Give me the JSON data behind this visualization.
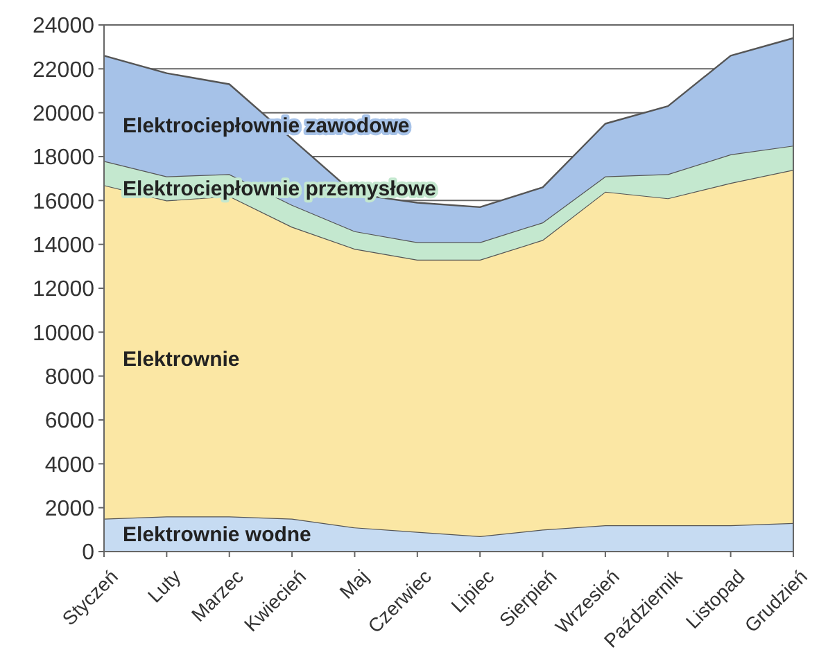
{
  "chart_data": {
    "type": "area",
    "stacked": true,
    "categories": [
      "Styczeń",
      "Luty",
      "Marzec",
      "Kwiecień",
      "Maj",
      "Czerwiec",
      "Lipiec",
      "Sierpień",
      "Wrzesień",
      "Październik",
      "Listopad",
      "Grudzień"
    ],
    "series": [
      {
        "name": "Elektrownie wodne",
        "color": "#c6dbf2",
        "values": [
          1500,
          1600,
          1600,
          1500,
          1100,
          900,
          700,
          1000,
          1200,
          1200,
          1200,
          1300
        ]
      },
      {
        "name": "Elektrownie",
        "color": "#fbe7a4",
        "values": [
          15200,
          14400,
          14600,
          13300,
          12700,
          12400,
          12600,
          13200,
          15200,
          14900,
          15600,
          16100
        ]
      },
      {
        "name": "Elektrociepłownie przemysłowe",
        "color": "#c4e8cf",
        "values": [
          1100,
          1100,
          1000,
          1000,
          800,
          800,
          800,
          800,
          700,
          1100,
          1300,
          1100
        ]
      },
      {
        "name": "Elektrociepłownie zawodowe",
        "color": "#a6c2e8",
        "values": [
          4800,
          4700,
          4100,
          3000,
          1700,
          1800,
          1600,
          1600,
          2400,
          3100,
          4500,
          4900
        ]
      }
    ],
    "ylim": [
      0,
      24000
    ],
    "yticks": [
      0,
      2000,
      4000,
      6000,
      8000,
      10000,
      12000,
      14000,
      16000,
      18000,
      20000,
      22000,
      24000
    ],
    "grid": "y"
  }
}
